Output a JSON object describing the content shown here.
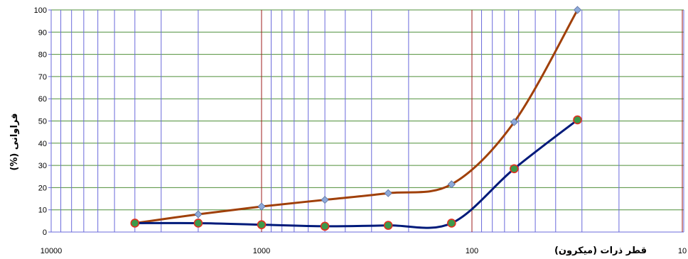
{
  "chart_data": {
    "type": "line",
    "xlabel": "قطر ذرات (میکرون)",
    "ylabel": "فراوانی (%)",
    "x_scale": "log",
    "x_reversed": true,
    "xlim": [
      10000,
      10
    ],
    "ylim": [
      0,
      100
    ],
    "x_tick_labels": [
      "10000",
      "1000",
      "100",
      "10"
    ],
    "y_tick_labels": [
      "0",
      "10",
      "20",
      "30",
      "40",
      "50",
      "60",
      "70",
      "80",
      "90",
      "100"
    ],
    "grid": true,
    "series": [
      {
        "color": "#A0400A",
        "marker": "diamond",
        "marker_color": "#8DA9D9",
        "x": [
          4000,
          2000,
          1000,
          500,
          250,
          125,
          63,
          31.5
        ],
        "y": [
          4,
          8,
          11.5,
          14.5,
          17.5,
          21.5,
          49.5,
          100
        ]
      },
      {
        "color": "#001A7A",
        "marker": "circle",
        "marker_color": "#3C9A4A",
        "marker_edge": "#E03020",
        "x": [
          4000,
          2000,
          1000,
          500,
          250,
          125,
          63,
          31.5
        ],
        "y": [
          4,
          4,
          3.3,
          2.6,
          3,
          4,
          28.5,
          50.5
        ]
      }
    ],
    "colors": {
      "grid_major": "#9E1B1B",
      "grid_minor": "#6A6ADB",
      "grid_horizontal": "#4F8F3A",
      "axis": "#6A6ADB"
    }
  }
}
